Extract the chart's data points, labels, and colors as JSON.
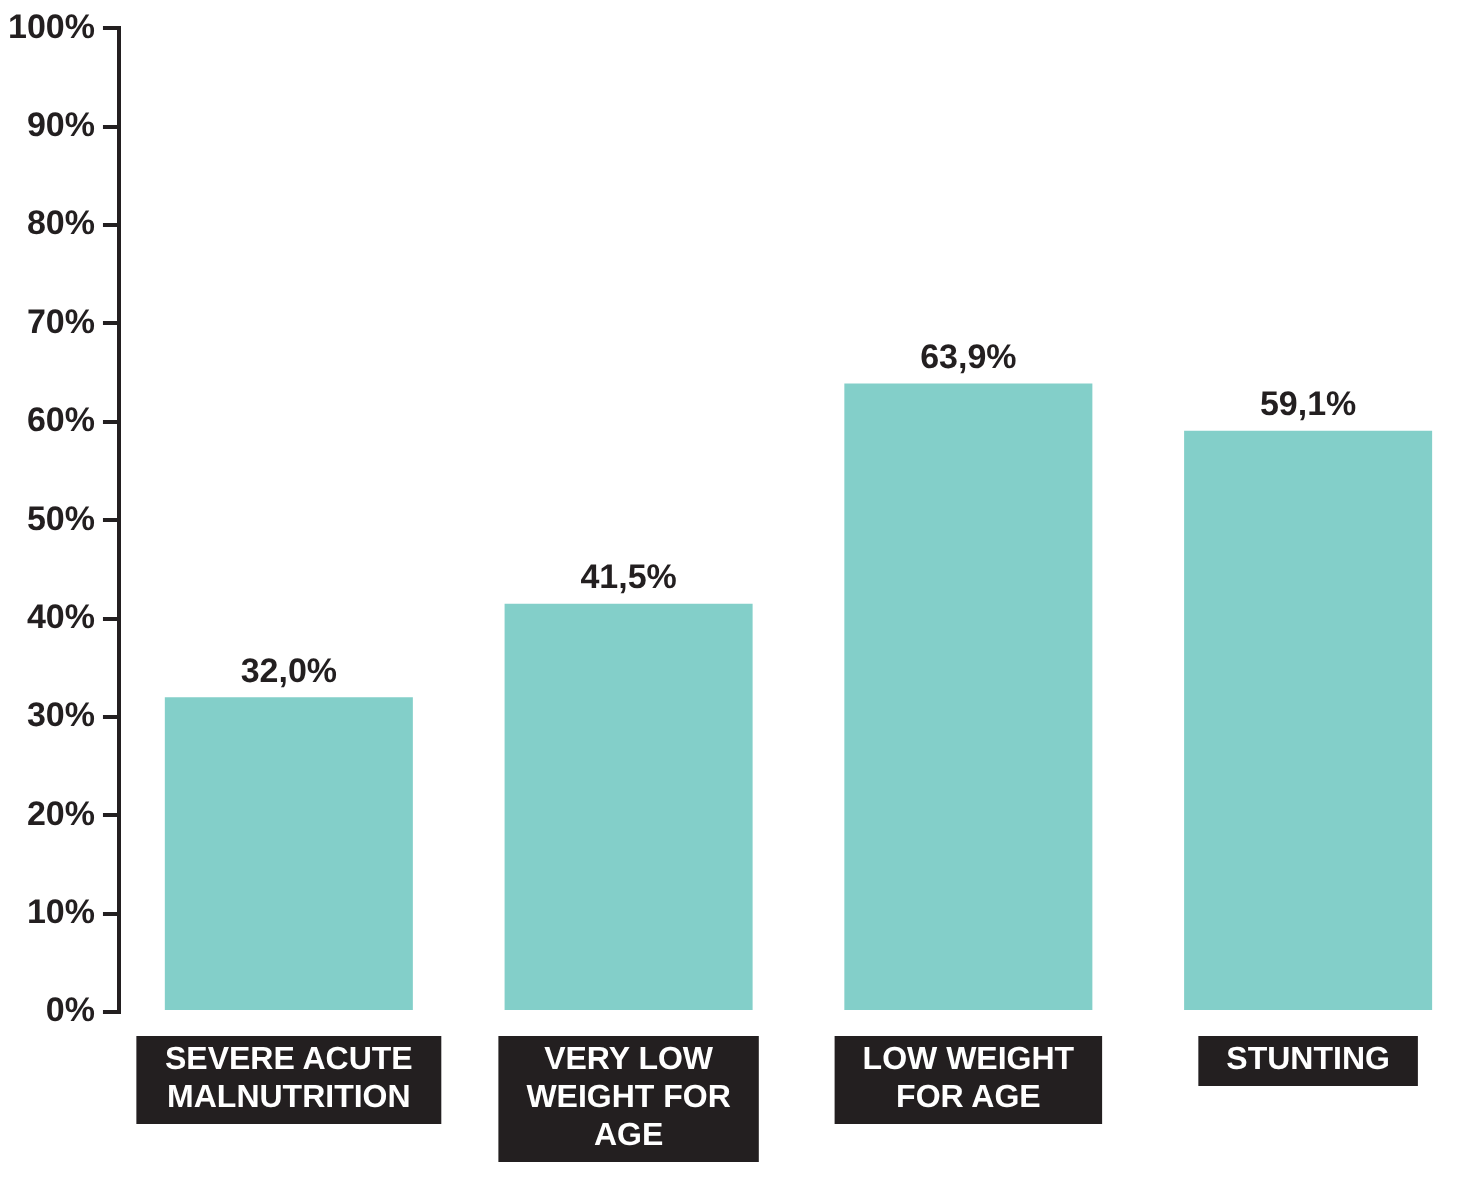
{
  "chart_data": {
    "type": "bar",
    "categories": [
      "SEVERE ACUTE MALNUTRITION",
      "VERY LOW WEIGHT FOR AGE",
      "LOW WEIGHT FOR AGE",
      "STUNTING"
    ],
    "values": [
      32.0,
      41.5,
      63.9,
      59.1
    ],
    "value_labels": [
      "32,0%",
      "41,5%",
      "63,9%",
      "59,1%"
    ],
    "color": "#83cfc9",
    "ylim": [
      0,
      100
    ],
    "yticks": [
      {
        "value": 0,
        "label": "0%"
      },
      {
        "value": 10,
        "label": "10%"
      },
      {
        "value": 20,
        "label": "20%"
      },
      {
        "value": 30,
        "label": "30%"
      },
      {
        "value": 40,
        "label": "40%"
      },
      {
        "value": 50,
        "label": "50%"
      },
      {
        "value": 60,
        "label": "60%"
      },
      {
        "value": 70,
        "label": "70%"
      },
      {
        "value": 80,
        "label": "80%"
      },
      {
        "value": 90,
        "label": "90%"
      },
      {
        "value": 100,
        "label": "100%"
      }
    ],
    "grid": false,
    "legend": false
  }
}
